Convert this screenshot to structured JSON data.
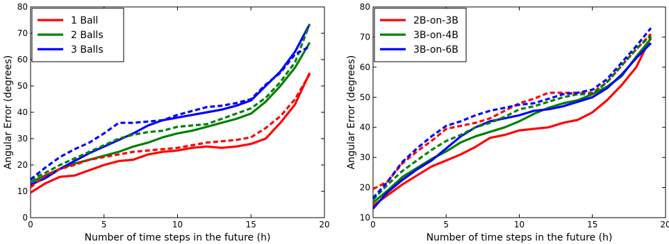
{
  "chart_data": [
    {
      "type": "line",
      "title": "",
      "xlabel": "Number of time steps in the future (h)",
      "ylabel": "Angular Error (degrees)",
      "xlim": [
        0,
        20
      ],
      "ylim": [
        0,
        80
      ],
      "xticks": [
        "0",
        "5",
        "10",
        "15",
        "20"
      ],
      "yticks": [
        "0",
        "10",
        "20",
        "30",
        "40",
        "50",
        "60",
        "70",
        "80"
      ],
      "grid": false,
      "legend_position": "top-left",
      "x": [
        0,
        1,
        2,
        3,
        4,
        5,
        6,
        7,
        8,
        9,
        10,
        11,
        12,
        13,
        14,
        15,
        16,
        17,
        18,
        19
      ],
      "series": [
        {
          "name": "1 Ball",
          "color": "#ff0000",
          "style": "solid",
          "in_legend": true,
          "values": [
            9.5,
            13,
            15.5,
            16,
            18,
            20,
            21.5,
            22,
            24,
            25,
            25.5,
            26.5,
            27,
            26.5,
            27,
            28,
            30,
            36,
            43,
            55
          ]
        },
        {
          "name": "2 Balls",
          "color": "#008000",
          "style": "solid",
          "in_legend": true,
          "values": [
            13.5,
            16,
            18.5,
            20.5,
            22,
            23.5,
            25,
            27,
            28.5,
            30.5,
            32,
            33,
            34.5,
            36,
            37.5,
            39.5,
            44,
            50,
            57,
            66.5
          ]
        },
        {
          "name": "3 Balls",
          "color": "#0000ff",
          "style": "solid",
          "in_legend": true,
          "values": [
            12.5,
            15,
            18.5,
            21.5,
            24.5,
            27,
            29.5,
            32,
            35,
            37,
            38,
            39,
            40,
            41,
            42.5,
            44.5,
            50,
            55.5,
            63,
            73.5
          ]
        },
        {
          "name": "",
          "color": "#ff0000",
          "style": "dashed",
          "in_legend": false,
          "values": [
            11.5,
            16,
            18.5,
            20,
            22,
            23,
            24,
            25,
            25.5,
            26,
            26.5,
            27.5,
            28.5,
            29,
            29.5,
            30.5,
            34,
            38.5,
            45,
            54.5
          ]
        },
        {
          "name": "",
          "color": "#008000",
          "style": "dashed",
          "in_legend": false,
          "values": [
            14.5,
            17,
            20,
            22.5,
            25,
            27.5,
            30,
            31.5,
            32.5,
            33,
            34.5,
            35,
            35.5,
            37.5,
            39.5,
            41.5,
            45.5,
            51.5,
            59,
            73.5
          ]
        },
        {
          "name": "",
          "color": "#0000ff",
          "style": "dashed",
          "in_legend": false,
          "values": [
            14.5,
            19,
            23,
            26,
            28.5,
            32,
            36,
            36,
            36.5,
            37,
            39,
            40.5,
            42,
            42.5,
            43.5,
            45,
            50.5,
            55,
            62,
            65
          ]
        }
      ]
    },
    {
      "type": "line",
      "title": "",
      "xlabel": "Number of time steps in the future (h)",
      "ylabel": "Angular Error (degrees)",
      "xlim": [
        0,
        20
      ],
      "ylim": [
        10,
        80
      ],
      "xticks": [
        "0",
        "5",
        "10",
        "15",
        "20"
      ],
      "yticks": [
        "10",
        "20",
        "30",
        "40",
        "50",
        "60",
        "70",
        "80"
      ],
      "grid": false,
      "legend_position": "top-left",
      "x": [
        0,
        1,
        2,
        3,
        4,
        5,
        6,
        7,
        8,
        9,
        10,
        11,
        12,
        13,
        14,
        15,
        16,
        17,
        18,
        19
      ],
      "series": [
        {
          "name": "2B-on-3B",
          "color": "#ff0000",
          "style": "solid",
          "in_legend": true,
          "values": [
            14,
            17.5,
            21,
            24,
            27,
            29,
            31,
            33.5,
            36.5,
            37.5,
            39,
            39.5,
            40,
            41.5,
            42.5,
            45,
            49,
            54,
            60,
            70
          ]
        },
        {
          "name": "3B-on-4B",
          "color": "#008000",
          "style": "solid",
          "in_legend": true,
          "values": [
            15,
            19,
            23.5,
            26.5,
            29.5,
            32,
            35,
            37,
            38.5,
            40,
            42,
            44.5,
            46.5,
            48,
            49,
            51,
            53.5,
            57,
            63.5,
            69.5
          ]
        },
        {
          "name": "3B-on-6B",
          "color": "#0000ff",
          "style": "solid",
          "in_legend": true,
          "values": [
            13,
            18.5,
            22.5,
            26,
            29,
            33,
            37,
            40,
            42,
            43,
            44,
            45.5,
            46,
            47,
            48.5,
            50,
            53,
            57.5,
            63,
            68
          ]
        },
        {
          "name": "",
          "color": "#ff0000",
          "style": "dashed",
          "in_legend": false,
          "values": [
            19.5,
            22,
            28,
            32,
            35.5,
            39.5,
            40.5,
            41.5,
            43,
            45.5,
            48,
            49.5,
            51.5,
            51.5,
            51.5,
            51.5,
            55,
            60.5,
            66,
            71
          ]
        },
        {
          "name": "",
          "color": "#008000",
          "style": "dashed",
          "in_legend": false,
          "values": [
            16,
            21,
            25.5,
            29,
            32.5,
            35.5,
            37.5,
            40,
            41.5,
            43.5,
            46,
            47,
            48.5,
            50,
            51,
            51,
            55,
            60.5,
            66,
            70.5
          ]
        },
        {
          "name": "",
          "color": "#0000ff",
          "style": "dashed",
          "in_legend": false,
          "values": [
            16.5,
            22,
            28.5,
            33,
            37,
            40.5,
            42,
            44,
            45.5,
            46.5,
            47.5,
            48,
            49.5,
            51,
            51.5,
            52.5,
            56,
            61.5,
            67,
            73
          ]
        }
      ]
    }
  ]
}
